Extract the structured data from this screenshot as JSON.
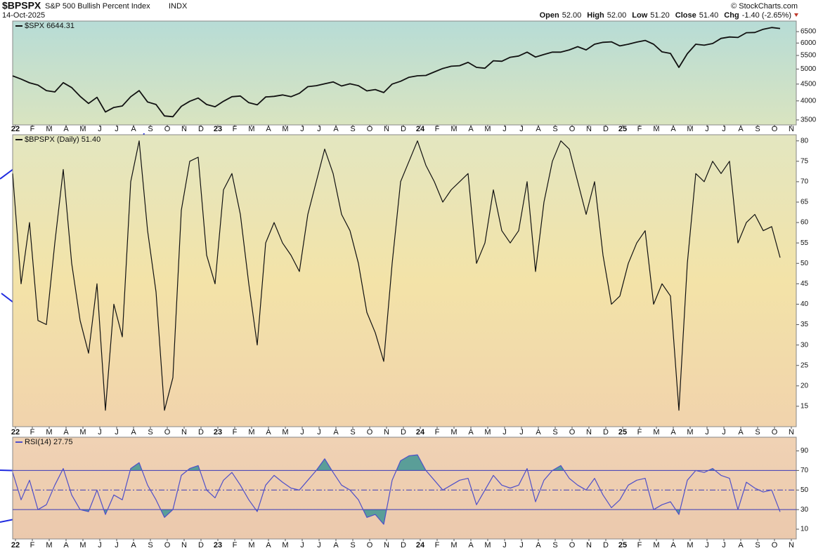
{
  "header": {
    "symbol": "$BPSPX",
    "name": "S&P 500 Bullish Percent Index",
    "exchange": "INDX",
    "date": "14-Oct-2025",
    "credit": "© StockCharts.com",
    "quote": [
      {
        "label": "Open",
        "value": "52.00"
      },
      {
        "label": "High",
        "value": "52.00"
      },
      {
        "label": "Low",
        "value": "51.20"
      },
      {
        "label": "Close",
        "value": "51.40"
      },
      {
        "label": "Chg",
        "value": "-1.40 (-2.65%)"
      }
    ]
  },
  "chart_data": [
    {
      "type": "line",
      "legend": "$SPX 6644.31",
      "color": "#111111",
      "log_scale": true,
      "ylim": [
        3380,
        7000
      ],
      "yticks": [
        3500,
        4000,
        4500,
        5000,
        5500,
        6000,
        6500
      ],
      "xticks": [
        "22",
        "F",
        "M",
        "A",
        "M",
        "J",
        "J",
        "A",
        "S",
        "O",
        "N",
        "D",
        "23",
        "F",
        "M",
        "A",
        "M",
        "J",
        "J",
        "A",
        "S",
        "O",
        "N",
        "D",
        "24",
        "F",
        "M",
        "A",
        "M",
        "J",
        "J",
        "A",
        "S",
        "O",
        "N",
        "D",
        "25",
        "F",
        "M",
        "A",
        "M",
        "J",
        "J",
        "A",
        "S",
        "O",
        "N"
      ],
      "values": [
        4766,
        4660,
        4540,
        4470,
        4300,
        4260,
        4545,
        4390,
        4130,
        3930,
        4100,
        3700,
        3820,
        3860,
        4120,
        4300,
        3970,
        3900,
        3600,
        3580,
        3850,
        3990,
        4080,
        3900,
        3840,
        3990,
        4120,
        4140,
        3950,
        3890,
        4110,
        4130,
        4170,
        4120,
        4220,
        4420,
        4450,
        4510,
        4570,
        4440,
        4510,
        4450,
        4290,
        4330,
        4240,
        4500,
        4590,
        4720,
        4770,
        4780,
        4900,
        5020,
        5100,
        5120,
        5240,
        5060,
        5030,
        5300,
        5280,
        5430,
        5480,
        5630,
        5440,
        5540,
        5630,
        5630,
        5720,
        5850,
        5720,
        5950,
        6030,
        6050,
        5880,
        5950,
        6040,
        6110,
        5950,
        5640,
        5580,
        5060,
        5570,
        5950,
        5910,
        5980,
        6200,
        6260,
        6240,
        6450,
        6460,
        6610,
        6690,
        6644.31
      ]
    },
    {
      "type": "line",
      "legend": "$BPSPX (Daily) 51.40",
      "color": "#111111",
      "log_scale": false,
      "ylim": [
        10,
        81.5
      ],
      "yticks": [
        15,
        20,
        25,
        30,
        35,
        40,
        45,
        50,
        55,
        60,
        65,
        70,
        75,
        80
      ],
      "xticks": [
        "22",
        "F",
        "M",
        "A",
        "M",
        "J",
        "J",
        "A",
        "S",
        "O",
        "N",
        "D",
        "23",
        "F",
        "M",
        "A",
        "M",
        "J",
        "J",
        "A",
        "S",
        "O",
        "N",
        "D",
        "24",
        "F",
        "M",
        "A",
        "M",
        "J",
        "J",
        "A",
        "S",
        "O",
        "N",
        "D",
        "25",
        "F",
        "M",
        "A",
        "M",
        "J",
        "J",
        "A",
        "S",
        "O",
        "N"
      ],
      "values": [
        72,
        45,
        60,
        36,
        35,
        55,
        73,
        50,
        36,
        28,
        45,
        14,
        40,
        32,
        70,
        80,
        58,
        43,
        14,
        22,
        63,
        75,
        76,
        52,
        45,
        68,
        72,
        62,
        45,
        30,
        55,
        60,
        55,
        52,
        48,
        62,
        70,
        78,
        72,
        62,
        58,
        50,
        38,
        33,
        26,
        50,
        70,
        75,
        80,
        74,
        70,
        65,
        68,
        70,
        72,
        50,
        55,
        68,
        58,
        55,
        58,
        70,
        48,
        65,
        75,
        80,
        78,
        70,
        62,
        70,
        52,
        40,
        42,
        50,
        55,
        58,
        40,
        45,
        42,
        14,
        50,
        72,
        70,
        75,
        72,
        75,
        55,
        60,
        62,
        58,
        59,
        51.4
      ]
    },
    {
      "type": "line",
      "legend": "RSI(14) 27.75",
      "color": "#4f4fc9",
      "fill_color": "#5a9e98",
      "log_scale": false,
      "ylim": [
        0,
        104
      ],
      "yticks": [
        10,
        30,
        50,
        70,
        90
      ],
      "overbought": 70,
      "oversold": 30,
      "midline": 50,
      "xticks": [
        "22",
        "F",
        "M",
        "A",
        "M",
        "J",
        "J",
        "A",
        "S",
        "O",
        "N",
        "D",
        "23",
        "F",
        "M",
        "A",
        "M",
        "J",
        "J",
        "A",
        "S",
        "O",
        "N",
        "D",
        "24",
        "F",
        "M",
        "A",
        "M",
        "J",
        "J",
        "A",
        "S",
        "O",
        "N",
        "D",
        "25",
        "F",
        "M",
        "A",
        "M",
        "J",
        "J",
        "A",
        "S",
        "O",
        "N"
      ],
      "values": [
        68,
        40,
        60,
        30,
        35,
        55,
        72,
        45,
        30,
        28,
        50,
        25,
        45,
        40,
        72,
        78,
        55,
        40,
        22,
        30,
        65,
        72,
        75,
        50,
        42,
        60,
        68,
        55,
        40,
        28,
        55,
        65,
        58,
        52,
        50,
        60,
        70,
        82,
        68,
        55,
        50,
        40,
        22,
        25,
        15,
        60,
        80,
        85,
        86,
        70,
        60,
        50,
        55,
        60,
        62,
        35,
        50,
        65,
        55,
        52,
        55,
        72,
        38,
        60,
        70,
        75,
        62,
        55,
        50,
        62,
        45,
        32,
        40,
        55,
        60,
        62,
        30,
        35,
        38,
        25,
        60,
        70,
        68,
        72,
        65,
        62,
        30,
        58,
        52,
        48,
        50,
        27.75
      ]
    }
  ]
}
